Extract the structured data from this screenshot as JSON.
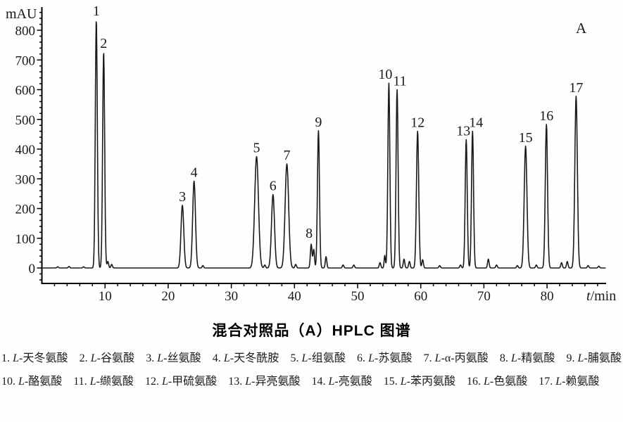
{
  "panel_label": "A",
  "chart_data": {
    "type": "line",
    "title": "混合对照品（A）HPLC 图谱",
    "xlabel": "t/min",
    "ylabel": "mAU",
    "xlim": [
      0,
      89.5
    ],
    "ylim": [
      0,
      870
    ],
    "x_ticks_major": [
      10,
      20,
      30,
      40,
      50,
      60,
      70,
      80
    ],
    "x_minor_step": 2,
    "y_ticks_major": [
      0,
      100,
      200,
      300,
      400,
      500,
      600,
      700,
      800
    ],
    "y_minor_step": 20,
    "grid": false,
    "legend_position": "below-figure",
    "line_color": "#1a1a1a",
    "peaks": [
      {
        "n": 1,
        "t": 8.62,
        "mAU": 835,
        "sigma": 0.16
      },
      {
        "n": 2,
        "t": 9.78,
        "mAU": 727,
        "sigma": 0.16
      },
      {
        "n": 3,
        "t": 22.25,
        "mAU": 211,
        "sigma": 0.22
      },
      {
        "n": 4,
        "t": 24.1,
        "mAU": 292,
        "sigma": 0.22
      },
      {
        "n": 5,
        "t": 34.0,
        "mAU": 375,
        "sigma": 0.3
      },
      {
        "n": 6,
        "t": 36.6,
        "mAU": 247,
        "sigma": 0.24
      },
      {
        "n": 7,
        "t": 38.8,
        "mAU": 350,
        "sigma": 0.28
      },
      {
        "n": 8,
        "t": 42.65,
        "mAU": 80,
        "sigma": 0.13,
        "dx": -3,
        "dy": -3
      },
      {
        "n": 9,
        "t": 43.8,
        "mAU": 462,
        "sigma": 0.16
      },
      {
        "n": 10,
        "t": 54.95,
        "mAU": 622,
        "sigma": 0.16,
        "dx": -5
      },
      {
        "n": 11,
        "t": 56.25,
        "mAU": 600,
        "sigma": 0.16,
        "dx": 4
      },
      {
        "n": 12,
        "t": 59.5,
        "mAU": 460,
        "sigma": 0.18
      },
      {
        "n": 13,
        "t": 67.2,
        "mAU": 432,
        "sigma": 0.16,
        "dx": -4
      },
      {
        "n": 14,
        "t": 68.2,
        "mAU": 460,
        "sigma": 0.16,
        "dx": 5
      },
      {
        "n": 15,
        "t": 76.6,
        "mAU": 410,
        "sigma": 0.22
      },
      {
        "n": 16,
        "t": 79.9,
        "mAU": 483,
        "sigma": 0.18
      },
      {
        "n": 17,
        "t": 84.6,
        "mAU": 578,
        "sigma": 0.2
      }
    ],
    "minor_bumps": [
      [
        2.5,
        4
      ],
      [
        4.3,
        5
      ],
      [
        6.6,
        4
      ],
      [
        10.45,
        22
      ],
      [
        11.05,
        12
      ],
      [
        25.5,
        8
      ],
      [
        35.3,
        10
      ],
      [
        40.2,
        12
      ],
      [
        43.05,
        62
      ],
      [
        45.0,
        38
      ],
      [
        47.7,
        10
      ],
      [
        49.4,
        10
      ],
      [
        53.55,
        18
      ],
      [
        54.3,
        42,
        0.1
      ],
      [
        57.35,
        30
      ],
      [
        58.2,
        22
      ],
      [
        60.3,
        28
      ],
      [
        63.0,
        8
      ],
      [
        66.3,
        10
      ],
      [
        70.7,
        30
      ],
      [
        72.0,
        10
      ],
      [
        75.3,
        8
      ],
      [
        78.3,
        10
      ],
      [
        82.3,
        18
      ],
      [
        83.2,
        22
      ],
      [
        86.5,
        8
      ],
      [
        88.2,
        6
      ]
    ]
  },
  "legend": {
    "items": [
      {
        "num": "1",
        "compound": "L-天冬氨酸"
      },
      {
        "num": "2",
        "compound": "L-谷氨酸"
      },
      {
        "num": "3",
        "compound": "L-丝氨酸"
      },
      {
        "num": "4",
        "compound": "L-天冬酰胺"
      },
      {
        "num": "5",
        "compound": "L-组氨酸"
      },
      {
        "num": "6",
        "compound": "L-苏氨酸"
      },
      {
        "num": "7",
        "compound": "L-α-丙氨酸"
      },
      {
        "num": "8",
        "compound": "L-精氨酸"
      },
      {
        "num": "9",
        "compound": "L-脯氨酸"
      },
      {
        "num": "10",
        "compound": "L-酪氨酸"
      },
      {
        "num": "11",
        "compound": "L-缬氨酸"
      },
      {
        "num": "12",
        "compound": "L-甲硫氨酸"
      },
      {
        "num": "13",
        "compound": "L-异亮氨酸"
      },
      {
        "num": "14",
        "compound": "L-亮氨酸"
      },
      {
        "num": "15",
        "compound": "L-苯丙氨酸"
      },
      {
        "num": "16",
        "compound": "L-色氨酸"
      },
      {
        "num": "17",
        "compound": "L-赖氨酸"
      }
    ]
  }
}
